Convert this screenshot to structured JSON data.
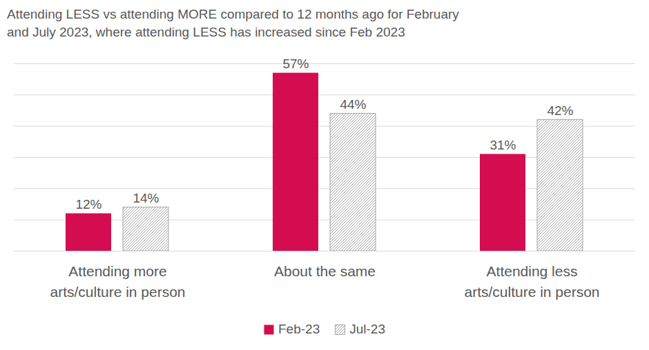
{
  "chart_data": {
    "type": "bar",
    "title": "Attending LESS vs attending MORE compared to 12 months ago for February and July 2023, where attending LESS has increased since Feb 2023",
    "categories": [
      "Attending more arts/culture in person",
      "About the same",
      "Attending less arts/culture in person"
    ],
    "series": [
      {
        "name": "Feb-23",
        "color": "#d40d50",
        "values": [
          12,
          57,
          31
        ],
        "value_labels": [
          "12%",
          "57%",
          "31%"
        ]
      },
      {
        "name": "Jul-23",
        "color": "#a6a6a6",
        "values": [
          14,
          44,
          42
        ],
        "value_labels": [
          "14%",
          "44%",
          "42%"
        ]
      }
    ],
    "ylim": [
      0,
      60
    ],
    "yticks": [
      0,
      10,
      20,
      30,
      40,
      50,
      60
    ],
    "grid": true,
    "data_labels": true,
    "tick_labels": "x",
    "legend": "bottom"
  }
}
